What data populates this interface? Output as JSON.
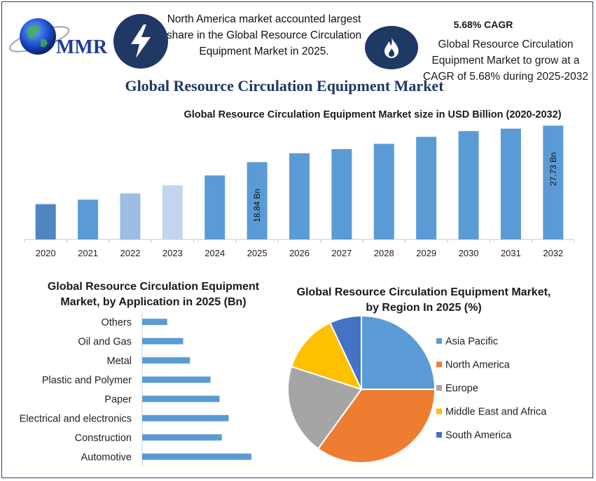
{
  "header": {
    "logo_text": "MMR",
    "info_left": "North America market accounted largest share in the Global Resource Circulation Equipment Market in 2025.",
    "cagr_title": "5.68% CAGR",
    "info_right": "Global Resource Circulation Equipment Market to grow at a CAGR of 5.68% during 2025-2032",
    "main_title": "Global Resource Circulation Equipment Market",
    "icons": [
      "lightning-icon",
      "flame-icon"
    ]
  },
  "chart_data": [
    {
      "type": "bar",
      "title": "Global Resource Circulation Equipment Market size in USD Billion (2020-2032)",
      "categories": [
        "2020",
        "2021",
        "2022",
        "2023",
        "2024",
        "2025",
        "2026",
        "2027",
        "2028",
        "2029",
        "2030",
        "2031",
        "2032"
      ],
      "values": [
        8.6,
        9.7,
        11.2,
        13.2,
        15.6,
        18.84,
        21.0,
        22.0,
        23.3,
        25.0,
        26.4,
        27.0,
        27.73
      ],
      "data_labels": {
        "5": "18.84 Bn",
        "12": "27.73 Bn"
      },
      "colors": [
        "#4e86c2",
        "#5b9bd5",
        "#9dbde3",
        "#c2d5ee",
        "#5b9bd5",
        "#5b9bd5",
        "#5b9bd5",
        "#5b9bd5",
        "#5b9bd5",
        "#5b9bd5",
        "#5b9bd5",
        "#5b9bd5",
        "#5b9bd5"
      ],
      "ylim": [
        0,
        29
      ],
      "grid": false
    },
    {
      "type": "bar",
      "orientation": "horizontal",
      "title": "Global Resource Circulation Equipment Market, by Application in 2025 (Bn)",
      "categories": [
        "Others",
        "Oil and Gas",
        "Metal",
        "Plastic and Polymer",
        "Paper",
        "Electrical and electronics",
        "Construction",
        "Automotive"
      ],
      "values": [
        1.1,
        1.8,
        2.1,
        3.0,
        3.4,
        3.8,
        3.5,
        4.8
      ],
      "color": "#5b9bd5",
      "xlim": [
        0,
        10
      ]
    },
    {
      "type": "pie",
      "title": "Global Resource Circulation Equipment Market, by Region In 2025 (%)",
      "labels": [
        "Asia Pacific",
        "North America",
        "Europe",
        "Middle East and Africa",
        "South America"
      ],
      "values": [
        25,
        35,
        20,
        13,
        7
      ],
      "colors": [
        "#5b9bd5",
        "#ed7d31",
        "#a5a5a5",
        "#ffc000",
        "#4472c4"
      ],
      "legend": "right"
    }
  ]
}
